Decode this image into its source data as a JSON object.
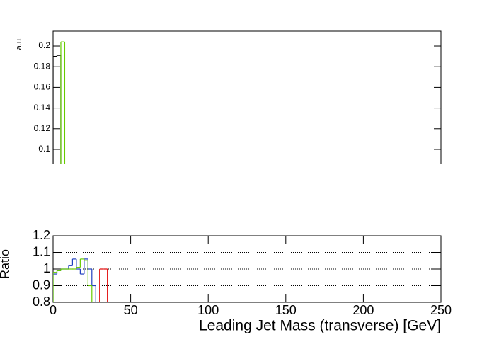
{
  "chart_data": [
    {
      "type": "histogram",
      "ylabel": "a.u.",
      "xlim": [
        0,
        250
      ],
      "ylim": [
        0.0856,
        0.2144
      ],
      "yticks": [
        0.1,
        0.12,
        0.14,
        0.16,
        0.18,
        0.2
      ],
      "bins": [
        0,
        2.5,
        5,
        7.5
      ],
      "series": [
        {
          "color": "#000000",
          "values": [
            0.19,
            0.191,
            null
          ]
        },
        {
          "color": "#66cc00",
          "values": [
            null,
            null,
            0.204
          ]
        }
      ]
    },
    {
      "type": "histogram",
      "xlabel": "Leading Jet Mass (transverse) [GeV]",
      "ylabel": "Ratio",
      "xlim": [
        0,
        250
      ],
      "ylim": [
        0.8,
        1.2
      ],
      "xticks": [
        0,
        50,
        100,
        150,
        200,
        250
      ],
      "yticks": [
        0.8,
        0.9,
        1,
        1.1,
        1.2
      ],
      "hlines": [
        0.9,
        1,
        1.1
      ],
      "bins": [
        0,
        2.5,
        5,
        7.5,
        10,
        12.5,
        15,
        17.5,
        20,
        22.5,
        25,
        27.5,
        30,
        32.5,
        35
      ],
      "series": [
        {
          "color": "#1f3fbf",
          "values": [
            0.97,
            0.99,
            1.0,
            1.0,
            1.02,
            1.06,
            1.0,
            0.97,
            1.06,
            1.0,
            0.9,
            null,
            null,
            null
          ]
        },
        {
          "color": "#66cc00",
          "values": [
            0.98,
            0.99,
            1.0,
            1.0,
            1.0,
            1.0,
            1.01,
            1.06,
            1.05,
            0.9,
            null,
            null,
            null,
            null
          ]
        },
        {
          "color": "#e00000",
          "values": [
            null,
            null,
            null,
            null,
            null,
            null,
            null,
            null,
            null,
            null,
            null,
            null,
            1.0,
            1.0
          ]
        }
      ]
    }
  ]
}
